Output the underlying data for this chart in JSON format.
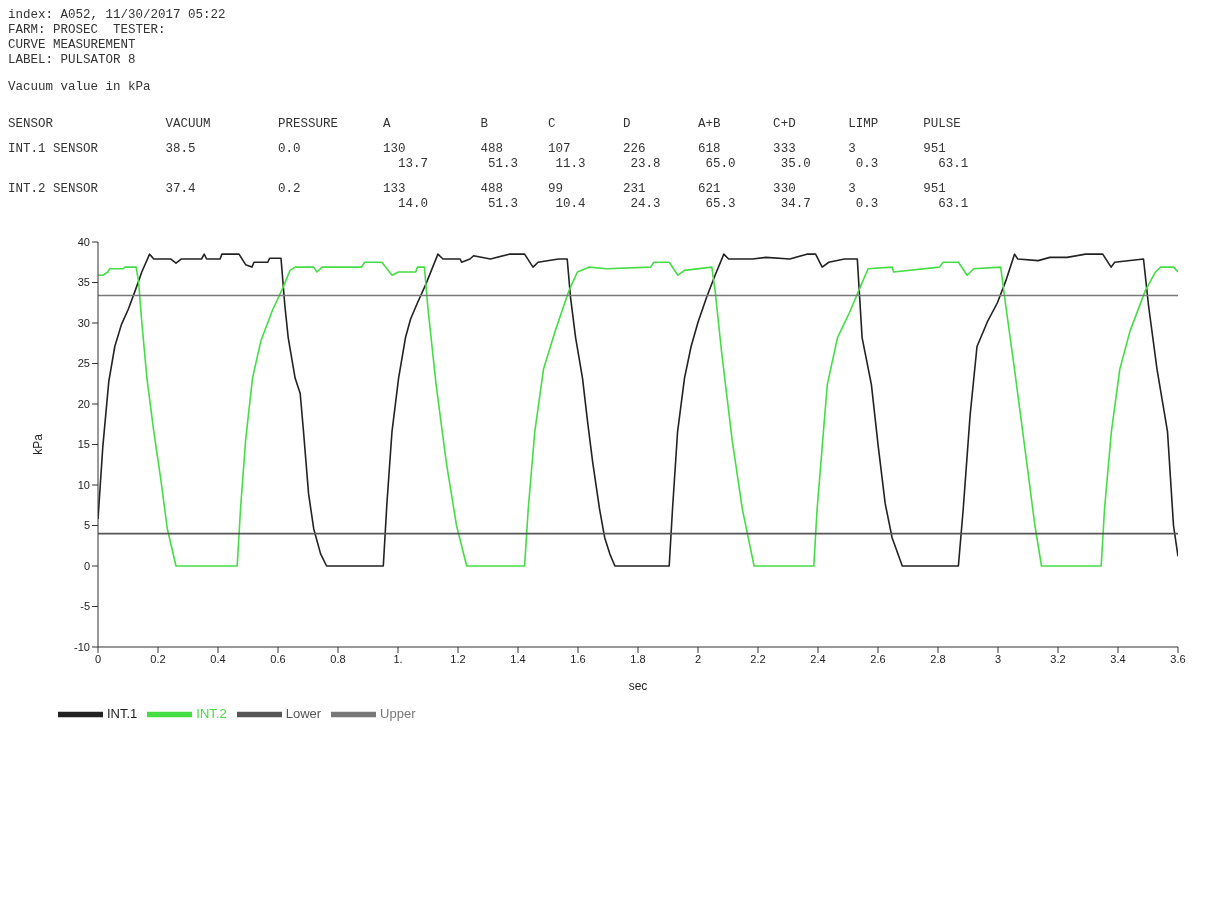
{
  "chart_data": {
    "type": "line",
    "title": "Vacuum value in kPa",
    "annotations": [
      "index: A052, 11/30/2017 05:22",
      "FARM: PROSEC  TESTER:",
      "CURVE MEASUREMENT",
      "LABEL: PULSATOR 8",
      "SENSOR               VACUUM         PRESSURE      A            B        C         D         A+B       C+D       LIMP      PULSE",
      "INT.1 SENSOR         38.5           0.0           130          488      107       226       618       333       3         951",
      "                                                    13.7        51.3     11.3      23.8      65.0      35.0      0.3        63.1",
      "INT.2 SENSOR         37.4           0.2           133          488      99        231       621       330       3         951",
      "                                                    14.0        51.3     10.4      24.3      65.3      34.7      0.3        63.1"
    ],
    "xlabel": "sec",
    "ylabel": "kPa",
    "xlim": [
      0,
      3.6
    ],
    "xticks": [
      0,
      0.2,
      0.4,
      0.6,
      0.8,
      {
        "value": 1,
        "label": "1."
      },
      1.2,
      1.4,
      1.6,
      1.8,
      2,
      2.2,
      2.4,
      2.6,
      2.8,
      3,
      3.2,
      3.4,
      3.6
    ],
    "ylim": [
      -10,
      40
    ],
    "yticks": [
      -10,
      -5,
      0,
      5,
      10,
      15,
      20,
      25,
      30,
      35,
      40
    ],
    "legend": "bottom",
    "marker": "none",
    "line_style": "solid",
    "series": [
      {
        "name": "INT.1",
        "color": "#222222",
        "x": [
          0,
          0.016,
          0.036,
          0.056,
          0.078,
          0.101,
          0.124,
          0.146,
          0.172,
          0.186,
          0.243,
          0.26,
          0.277,
          0.345,
          0.354,
          0.362,
          0.407,
          0.413,
          0.47,
          0.492,
          0.513,
          0.52,
          0.566,
          0.572,
          0.61,
          0.623,
          0.634,
          0.657,
          0.674,
          0.685,
          0.702,
          0.719,
          0.742,
          0.762,
          0.951,
          0.963,
          0.98,
          1.002,
          1.025,
          1.042,
          1.065,
          1.093,
          1.133,
          1.15,
          1.207,
          1.212,
          1.24,
          1.252,
          1.308,
          1.371,
          1.422,
          1.45,
          1.467,
          1.535,
          1.564,
          1.575,
          1.592,
          1.615,
          1.632,
          1.649,
          1.672,
          1.689,
          1.706,
          1.723,
          1.904,
          1.915,
          1.932,
          1.955,
          1.977,
          2.0,
          2.029,
          2.057,
          2.086,
          2.102,
          2.181,
          2.227,
          2.306,
          2.363,
          2.392,
          2.414,
          2.436,
          2.488,
          2.531,
          2.547,
          2.578,
          2.601,
          2.624,
          2.647,
          2.681,
          2.868,
          2.884,
          2.907,
          2.93,
          2.964,
          2.998,
          3.026,
          3.055,
          3.066,
          3.134,
          3.173,
          3.23,
          3.292,
          3.349,
          3.377,
          3.389,
          3.485,
          3.502,
          3.53,
          3.565,
          3.585,
          3.6
        ],
        "values": [
          5.8,
          14.7,
          22.8,
          27.1,
          29.8,
          31.7,
          34.0,
          36.3,
          38.5,
          37.9,
          37.9,
          37.4,
          37.9,
          37.9,
          38.5,
          37.9,
          37.9,
          38.5,
          38.5,
          37.2,
          36.9,
          37.5,
          37.5,
          38.0,
          38.0,
          32.1,
          28.2,
          23.2,
          21.3,
          16.6,
          8.9,
          4.6,
          1.5,
          0,
          0,
          7.7,
          16.6,
          23.2,
          28.2,
          30.5,
          32.5,
          34.8,
          38.5,
          37.9,
          37.9,
          37.5,
          37.9,
          38.3,
          37.9,
          38.5,
          38.5,
          36.9,
          37.5,
          37.9,
          37.9,
          33.2,
          28.2,
          23.2,
          17.8,
          12.8,
          7.0,
          3.5,
          1.5,
          0,
          0,
          7.0,
          16.6,
          23.2,
          27.1,
          30.1,
          33.2,
          35.9,
          38.5,
          37.9,
          37.9,
          38.1,
          37.9,
          38.5,
          38.5,
          36.9,
          37.5,
          37.9,
          37.9,
          28.2,
          22.4,
          14.7,
          7.7,
          3.5,
          0,
          0,
          7.0,
          18.6,
          27.1,
          30.1,
          32.5,
          35.2,
          38.5,
          37.9,
          37.7,
          38.1,
          38.1,
          38.5,
          38.5,
          36.9,
          37.5,
          37.9,
          32.1,
          24.3,
          16.6,
          5.0,
          1.2
        ]
      },
      {
        "name": "INT.2",
        "color": "#44dd44",
        "x": [
          0,
          0.016,
          0.033,
          0.039,
          0.084,
          0.09,
          0.127,
          0.135,
          0.146,
          0.163,
          0.186,
          0.209,
          0.231,
          0.26,
          0.464,
          0.475,
          0.492,
          0.515,
          0.543,
          0.583,
          0.617,
          0.64,
          0.657,
          0.719,
          0.73,
          0.747,
          0.878,
          0.889,
          0.946,
          0.98,
          1.002,
          1.059,
          1.065,
          1.088,
          1.099,
          1.127,
          1.161,
          1.195,
          1.229,
          1.422,
          1.434,
          1.456,
          1.485,
          1.524,
          1.57,
          1.598,
          1.638,
          1.695,
          1.842,
          1.853,
          1.904,
          1.933,
          1.955,
          2.046,
          2.057,
          2.079,
          2.114,
          2.148,
          2.187,
          2.386,
          2.397,
          2.414,
          2.431,
          2.465,
          2.505,
          2.545,
          2.567,
          2.647,
          2.652,
          2.805,
          2.817,
          2.868,
          2.897,
          2.919,
          3.009,
          3.026,
          3.055,
          3.089,
          3.123,
          3.145,
          3.344,
          3.355,
          3.378,
          3.406,
          3.44,
          3.491,
          3.525,
          3.542,
          3.585,
          3.6
        ],
        "values": [
          35.9,
          35.9,
          36.3,
          36.7,
          36.7,
          36.9,
          36.9,
          35.2,
          30.1,
          23.2,
          16.6,
          10.8,
          4.6,
          0,
          0,
          7.0,
          15.5,
          23.2,
          27.8,
          31.7,
          34.4,
          36.5,
          36.9,
          36.9,
          36.3,
          36.9,
          36.9,
          37.5,
          37.5,
          35.9,
          36.3,
          36.3,
          36.9,
          36.9,
          32.1,
          22.4,
          12.8,
          5.0,
          0,
          0,
          7.0,
          16.6,
          24.3,
          29.0,
          34.0,
          36.3,
          36.9,
          36.7,
          36.9,
          37.5,
          37.5,
          35.9,
          36.5,
          36.9,
          34.0,
          26.3,
          15.5,
          7.0,
          0,
          0,
          7.0,
          14.7,
          22.4,
          28.2,
          31.3,
          34.8,
          36.7,
          36.9,
          36.3,
          36.9,
          37.5,
          37.5,
          35.9,
          36.7,
          36.9,
          32.1,
          24.3,
          14.7,
          5.0,
          0,
          0,
          7.0,
          16.6,
          24.3,
          29.0,
          34.0,
          36.3,
          36.9,
          36.9,
          36.3
        ]
      },
      {
        "name": "Lower",
        "color": "#555555",
        "x": [
          0,
          3.6
        ],
        "values": [
          4,
          4
        ]
      },
      {
        "name": "Upper",
        "color": "#777777",
        "x": [
          0,
          3.6
        ],
        "values": [
          33.4,
          33.4
        ]
      }
    ]
  }
}
